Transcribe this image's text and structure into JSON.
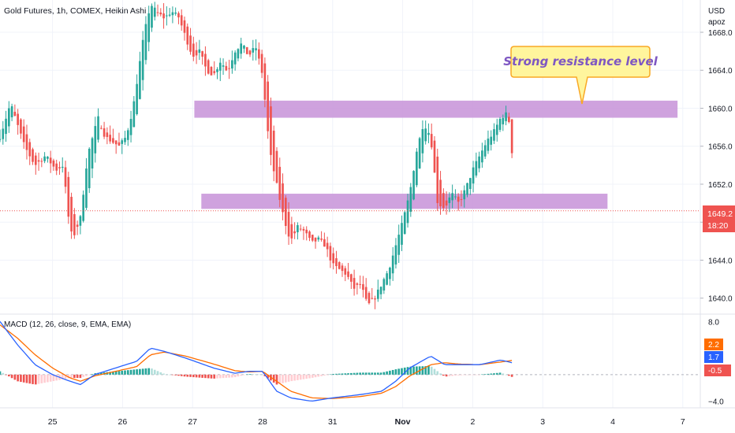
{
  "header": {
    "title": "Gold Futures, 1h, COMEX, Heikin Ashi"
  },
  "price_axis": {
    "currency": "USD",
    "scale_label": "apoz"
  },
  "last_price": {
    "value": "1649.2",
    "countdown": "18:20"
  },
  "annotation": {
    "text": "Strong resistance level"
  },
  "colors": {
    "up": "#26a69a",
    "down": "#ef5350",
    "zone": "#c792d8",
    "macd_line": "#2962ff",
    "signal_line": "#ff6d00",
    "hist_up_strong": "#26a69a",
    "hist_up_weak": "#b2dfdb",
    "hist_down_strong": "#ef5350",
    "hist_down_weak": "#ffcdd2",
    "callout_fill": "#fff59d",
    "callout_border": "#f9a825",
    "callout_text": "#7e57c2"
  },
  "macd": {
    "label": "MACD (12, 26, close, 9, EMA, EMA)",
    "badges": {
      "macd": "1.7",
      "signal": "2.2",
      "hist": "-0.5"
    },
    "axis_ticks": [
      8.0,
      -4.0
    ],
    "axis_tick_labels": [
      "8.0",
      "−4.0"
    ],
    "ylim": [
      -5,
      9
    ]
  },
  "chart_data": {
    "type": "candlestick",
    "style": "Heikin Ashi",
    "x_tick_labels": [
      "25",
      "26",
      "27",
      "28",
      "31",
      "Nov",
      "2",
      "3",
      "4",
      "7"
    ],
    "x_tick_positions": [
      0,
      20,
      40,
      60,
      80,
      100,
      120,
      140,
      160,
      180
    ],
    "x_range": [
      -15,
      185
    ],
    "y_ticks": [
      1668,
      1664,
      1660,
      1656,
      1652,
      1648,
      1644,
      1640
    ],
    "y_tick_labels": [
      "1668.0",
      "1664.0",
      "1660.0",
      "1656.0",
      "1652.0",
      "1648.0",
      "1644.0",
      "1640.0"
    ],
    "ylim": [
      1638.4,
      1671.4
    ],
    "zones": [
      {
        "x_start": 40.5,
        "x_end": 178.5,
        "y_low": 1659.0,
        "y_high": 1660.8
      },
      {
        "x_start": 42.5,
        "x_end": 158.5,
        "y_low": 1649.4,
        "y_high": 1651.0
      }
    ],
    "last_price_line": 1649.2,
    "anchors": [
      [
        -15,
        1657.0
      ],
      [
        -12,
        1660.5
      ],
      [
        -8,
        1656.0
      ],
      [
        -5,
        1654.0
      ],
      [
        -2,
        1655.0
      ],
      [
        1,
        1653.5
      ],
      [
        3,
        1654.0
      ],
      [
        5,
        1647.0
      ],
      [
        6,
        1646.5
      ],
      [
        8,
        1648.5
      ],
      [
        10,
        1655.0
      ],
      [
        13,
        1659.0
      ],
      [
        15,
        1657.0
      ],
      [
        17,
        1656.5
      ],
      [
        19,
        1656.0
      ],
      [
        21,
        1657.0
      ],
      [
        23,
        1660.0
      ],
      [
        26,
        1667.5
      ],
      [
        28,
        1671.0
      ],
      [
        30,
        1670.0
      ],
      [
        32,
        1669.5
      ],
      [
        34,
        1670.2
      ],
      [
        36,
        1669.6
      ],
      [
        38,
        1667.5
      ],
      [
        40,
        1665.5
      ],
      [
        42,
        1666.0
      ],
      [
        44,
        1664.0
      ],
      [
        46,
        1663.5
      ],
      [
        48,
        1665.0
      ],
      [
        50,
        1663.8
      ],
      [
        52,
        1666.0
      ],
      [
        54,
        1666.8
      ],
      [
        56,
        1665.5
      ],
      [
        58,
        1666.5
      ],
      [
        60,
        1663.5
      ],
      [
        62,
        1655.5
      ],
      [
        64,
        1652.0
      ],
      [
        66,
        1648.5
      ],
      [
        68,
        1646.0
      ],
      [
        70,
        1647.5
      ],
      [
        72,
        1647.0
      ],
      [
        74,
        1645.8
      ],
      [
        76,
        1646.2
      ],
      [
        78,
        1645.5
      ],
      [
        80,
        1643.5
      ],
      [
        82,
        1643.0
      ],
      [
        84,
        1642.5
      ],
      [
        86,
        1641.0
      ],
      [
        88,
        1641.5
      ],
      [
        90,
        1639.2
      ],
      [
        92,
        1640.0
      ],
      [
        94,
        1641.5
      ],
      [
        96,
        1643.0
      ],
      [
        98,
        1645.5
      ],
      [
        100,
        1648.0
      ],
      [
        102,
        1651.0
      ],
      [
        104,
        1655.5
      ],
      [
        106,
        1658.5
      ],
      [
        108,
        1657.0
      ],
      [
        110,
        1650.0
      ],
      [
        112,
        1649.5
      ],
      [
        114,
        1651.0
      ],
      [
        116,
        1650.0
      ],
      [
        118,
        1651.5
      ],
      [
        120,
        1653.5
      ],
      [
        122,
        1655.0
      ],
      [
        124,
        1656.5
      ],
      [
        126,
        1657.5
      ],
      [
        128,
        1659.0
      ],
      [
        130,
        1659.5
      ],
      [
        131,
        1657.0
      ],
      [
        132,
        1649.2
      ]
    ],
    "x_step": 0.85,
    "macd_anchors": [
      [
        -15,
        8.0
      ],
      [
        -10,
        4.5
      ],
      [
        -5,
        1.5
      ],
      [
        0,
        0.0
      ],
      [
        5,
        -1.0
      ],
      [
        8,
        -1.5
      ],
      [
        12,
        0.0
      ],
      [
        18,
        1.0
      ],
      [
        24,
        2.0
      ],
      [
        28,
        4.0
      ],
      [
        32,
        3.5
      ],
      [
        38,
        2.5
      ],
      [
        46,
        1.0
      ],
      [
        52,
        0.2
      ],
      [
        56,
        0.5
      ],
      [
        60,
        0.5
      ],
      [
        64,
        -2.5
      ],
      [
        68,
        -3.5
      ],
      [
        74,
        -4.0
      ],
      [
        80,
        -3.5
      ],
      [
        88,
        -3.0
      ],
      [
        94,
        -2.5
      ],
      [
        98,
        -1.0
      ],
      [
        102,
        1.0
      ],
      [
        108,
        2.8
      ],
      [
        112,
        1.5
      ],
      [
        116,
        1.5
      ],
      [
        122,
        1.5
      ],
      [
        128,
        2.2
      ],
      [
        132,
        1.7
      ]
    ],
    "signal_anchors": [
      [
        -15,
        7.5
      ],
      [
        -10,
        5.5
      ],
      [
        -5,
        3.0
      ],
      [
        0,
        1.0
      ],
      [
        5,
        -0.5
      ],
      [
        8,
        -1.0
      ],
      [
        12,
        -0.2
      ],
      [
        18,
        0.5
      ],
      [
        24,
        1.2
      ],
      [
        28,
        3.0
      ],
      [
        32,
        3.4
      ],
      [
        38,
        2.8
      ],
      [
        46,
        1.6
      ],
      [
        52,
        0.6
      ],
      [
        56,
        0.4
      ],
      [
        60,
        0.5
      ],
      [
        64,
        -1.0
      ],
      [
        68,
        -2.5
      ],
      [
        74,
        -3.5
      ],
      [
        80,
        -3.6
      ],
      [
        88,
        -3.3
      ],
      [
        94,
        -2.8
      ],
      [
        98,
        -1.8
      ],
      [
        102,
        -0.2
      ],
      [
        108,
        1.5
      ],
      [
        112,
        1.8
      ],
      [
        116,
        1.6
      ],
      [
        122,
        1.5
      ],
      [
        128,
        1.9
      ],
      [
        132,
        2.2
      ]
    ]
  }
}
